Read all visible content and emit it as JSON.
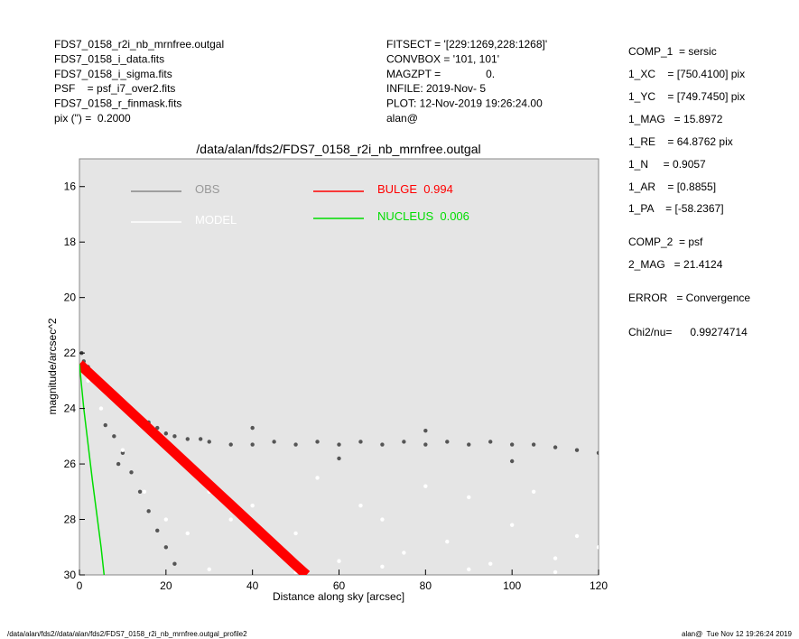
{
  "header": {
    "left": [
      "FDS7_0158_r2i_nb_mrnfree.outgal",
      "FDS7_0158_i_data.fits",
      "FDS7_0158_i_sigma.fits",
      "PSF    = psf_i7_over2.fits",
      "FDS7_0158_r_finmask.fits",
      "pix (\") =  0.2000"
    ],
    "middle": [
      "FITSECT = '[229:1269,228:1268]'",
      "CONVBOX = '101, 101'",
      "MAGZPT =               0.",
      "INFILE: 2019-Nov- 5",
      "PLOT: 12-Nov-2019 19:26:24.00",
      "alan@"
    ],
    "right": [
      "COMP_1  = sersic",
      "1_XC    = [750.4100] pix",
      "1_YC    = [749.7450] pix",
      "1_MAG   = 15.8972",
      "1_RE    = 64.8762 pix",
      "1_N     = 0.9057",
      "1_AR    = [0.8855]",
      "1_PA    = [-58.2367]",
      "COMP_2  = psf",
      "2_MAG   = 21.4124",
      "ERROR   = Convergence",
      "Chi2/nu=      0.99274714"
    ]
  },
  "footer": {
    "left": "/data/alan/fds2//data/alan/fds2/FDS7_0158_r2i_nb_mrnfree.outgal_profile2",
    "right": "alan@  Tue Nov 12 19:26:24 2019"
  },
  "chart_data": {
    "type": "scatter",
    "title": "/data/alan/fds2/FDS7_0158_r2i_nb_mrnfree.outgal",
    "xlabel": "Distance along sky [arcsec]",
    "ylabel": "magnitude/arcsec^2",
    "xlim": [
      0,
      120
    ],
    "xticks": [
      0,
      20,
      40,
      60,
      80,
      100,
      120
    ],
    "ylim": [
      30,
      15
    ],
    "yticks": [
      16,
      18,
      20,
      22,
      24,
      26,
      28,
      30
    ],
    "background": "#e5e5e5",
    "series": [
      {
        "name": "OBS",
        "color": "#555555",
        "mode": "markers",
        "x": [
          0.5,
          1,
          2,
          3,
          4,
          5,
          6,
          8,
          10,
          12,
          14,
          16,
          18,
          20,
          22,
          25,
          28,
          30,
          35,
          40,
          45,
          50,
          55,
          60,
          65,
          70,
          75,
          80,
          85,
          90,
          95,
          100,
          105,
          110,
          115,
          120,
          40,
          60,
          80,
          100,
          8,
          10,
          12,
          14,
          16,
          18,
          20,
          22,
          6,
          9
        ],
        "values": [
          22.0,
          22.3,
          22.5,
          22.7,
          22.9,
          23.1,
          23.3,
          23.6,
          23.8,
          24.1,
          24.3,
          24.5,
          24.7,
          24.9,
          25.0,
          25.1,
          25.1,
          25.2,
          25.3,
          25.3,
          25.2,
          25.3,
          25.2,
          25.3,
          25.2,
          25.3,
          25.2,
          25.3,
          25.2,
          25.3,
          25.2,
          25.3,
          25.3,
          25.4,
          25.5,
          25.6,
          24.7,
          25.8,
          24.8,
          25.9,
          25.0,
          25.6,
          26.3,
          27.0,
          27.7,
          28.4,
          29.0,
          29.6,
          24.6,
          26.0
        ]
      },
      {
        "name": "MODEL",
        "color": "#ffffff",
        "mode": "markers",
        "x": [
          2,
          5,
          10,
          15,
          20,
          25,
          30,
          35,
          40,
          45,
          50,
          55,
          60,
          65,
          70,
          75,
          80,
          85,
          90,
          95,
          100,
          105,
          110,
          115,
          120,
          30,
          50,
          70,
          90,
          110
        ],
        "values": [
          23.0,
          24.0,
          25.5,
          27,
          28,
          28.5,
          27,
          28,
          27.5,
          29,
          28.5,
          26.5,
          29.5,
          27.5,
          28,
          29.2,
          26.8,
          28.8,
          27.2,
          29.6,
          28.2,
          27,
          29.4,
          28.6,
          29,
          29.8,
          29.9,
          29.7,
          29.8,
          29.9
        ]
      },
      {
        "name": "BULGE  0.994",
        "color": "#ff0000",
        "mode": "band",
        "x": [
          0,
          10,
          20,
          30,
          40,
          50,
          52.5
        ],
        "values": [
          22.4,
          23.85,
          25.3,
          26.75,
          28.2,
          29.65,
          30
        ]
      },
      {
        "name": "NUCLEUS  0.006",
        "color": "#00dd00",
        "mode": "lines",
        "x": [
          0,
          1,
          2,
          3,
          4,
          5,
          5.7
        ],
        "values": [
          22.4,
          24.0,
          25.3,
          26.6,
          27.8,
          29,
          30
        ]
      }
    ]
  }
}
